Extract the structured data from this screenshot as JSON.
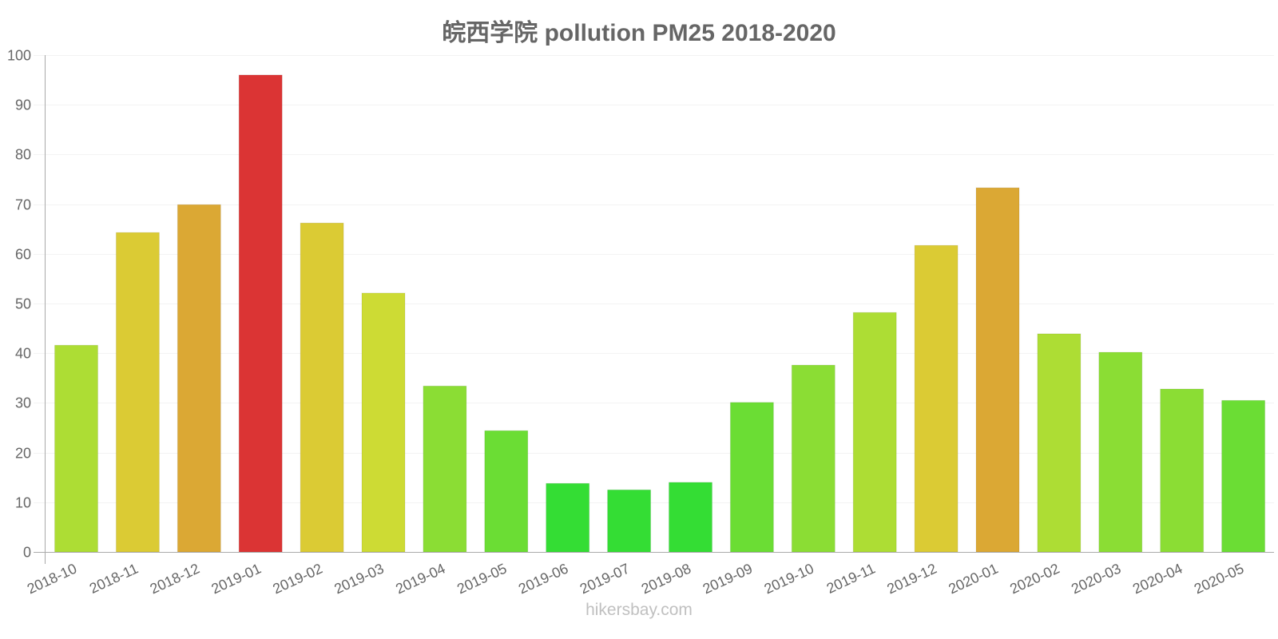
{
  "title": "皖西学院 pollution PM25 2018-2020",
  "watermark": "hikersbay.com",
  "colors": {
    "axis": "#aaaaaa",
    "grid": "#f3f3f3",
    "tick_text": "#666666",
    "title_text": "#666666",
    "watermark_text": "#c0c0c0"
  },
  "chart_data": {
    "type": "bar",
    "title": "皖西学院 pollution PM25 2018-2020",
    "xlabel": "",
    "ylabel": "",
    "ylim": [
      0,
      100
    ],
    "yticks": [
      0,
      10,
      20,
      30,
      40,
      50,
      60,
      70,
      80,
      90,
      100
    ],
    "grid": true,
    "legend": "none",
    "categories": [
      "2018-10",
      "2018-11",
      "2018-12",
      "2019-01",
      "2019-02",
      "2019-03",
      "2019-04",
      "2019-05",
      "2019-06",
      "2019-07",
      "2019-08",
      "2019-09",
      "2019-10",
      "2019-11",
      "2019-12",
      "2020-01",
      "2020-02",
      "2020-03",
      "2020-04",
      "2020-05"
    ],
    "values": [
      41.6,
      64.3,
      69.9,
      96.0,
      66.2,
      52.1,
      33.4,
      24.4,
      13.8,
      12.5,
      14.0,
      30.1,
      37.6,
      48.2,
      61.7,
      73.3,
      43.9,
      40.2,
      32.8,
      30.5
    ],
    "bar_colors": [
      "#addd34",
      "#dbcb34",
      "#dba834",
      "#db3434",
      "#dbcb34",
      "#cddb34",
      "#8bdd34",
      "#6bdd34",
      "#34dd34",
      "#34dd34",
      "#34dd34",
      "#6bdd34",
      "#8bdd34",
      "#addd34",
      "#dbcb34",
      "#dba834",
      "#addd34",
      "#8bdd34",
      "#8bdd34",
      "#6bdd34"
    ]
  }
}
